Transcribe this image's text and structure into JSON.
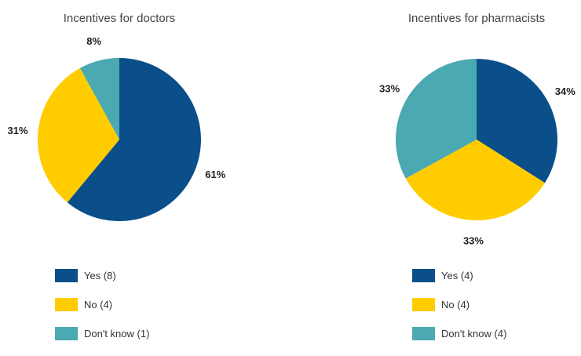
{
  "colors": {
    "yes": "#0B4F8A",
    "no": "#FFCC00",
    "dont_know": "#4AA9B1"
  },
  "chart_data": [
    {
      "type": "pie",
      "title": "Incentives for doctors",
      "slices": [
        {
          "key": "yes",
          "legend": "Yes (8)",
          "value": 61,
          "label": "61%"
        },
        {
          "key": "no",
          "legend": "No (4)",
          "value": 31,
          "label": "31%"
        },
        {
          "key": "dont_know",
          "legend": "Don't know (1)",
          "value": 8,
          "label": "8%"
        }
      ]
    },
    {
      "type": "pie",
      "title": "Incentives for pharmacists",
      "slices": [
        {
          "key": "yes",
          "legend": "Yes (4)",
          "value": 34,
          "label": "34%"
        },
        {
          "key": "no",
          "legend": "No (4)",
          "value": 33,
          "label": "33%"
        },
        {
          "key": "dont_know",
          "legend": "Don't know (4)",
          "value": 33,
          "label": "33%"
        }
      ]
    }
  ]
}
